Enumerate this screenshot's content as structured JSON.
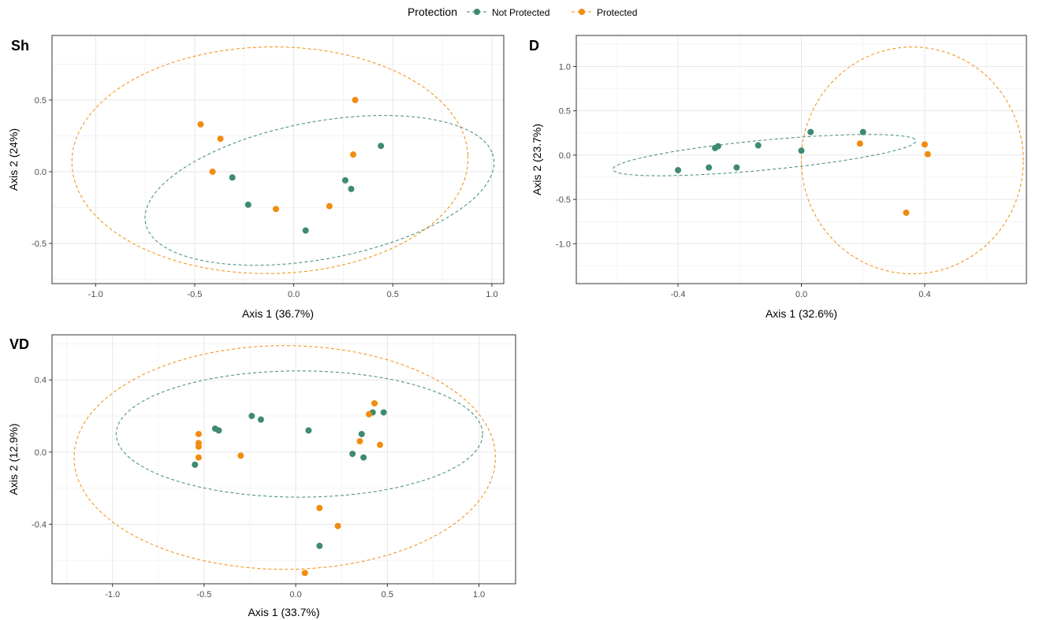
{
  "legend": {
    "title": "Protection",
    "items": [
      {
        "label": "Not Protected",
        "color": "#3e8a72"
      },
      {
        "label": "Protected",
        "color": "#f28c0f"
      }
    ],
    "placement": "top-center"
  },
  "chart_data": [
    {
      "type": "scatter",
      "title": "Sh",
      "xlabel": "Axis 1 (36.7%)",
      "ylabel": "Axis 2 (24%)",
      "xlim": [
        -1.22,
        1.06
      ],
      "ylim": [
        -0.78,
        0.95
      ],
      "xticks": [
        -1.0,
        -0.5,
        0.0,
        0.5,
        1.0
      ],
      "yticks": [
        -0.5,
        0.0,
        0.5
      ],
      "xtick_labels": [
        "-1.0",
        "-0.5",
        "0.0",
        "0.5",
        "1.0"
      ],
      "ytick_labels": [
        "-0.5",
        "0.0",
        "0.5"
      ],
      "grid": true,
      "series": [
        {
          "name": "Not Protected",
          "color": "#3e8a72",
          "points": [
            [
              -0.31,
              -0.04
            ],
            [
              -0.23,
              -0.23
            ],
            [
              0.06,
              -0.41
            ],
            [
              0.26,
              -0.06
            ],
            [
              0.29,
              -0.12
            ],
            [
              0.44,
              0.18
            ]
          ],
          "ellipse": {
            "cx": 0.13,
            "cy": -0.13,
            "rx": 0.91,
            "ry": 0.47,
            "angle": 17
          }
        },
        {
          "name": "Protected",
          "color": "#f28c0f",
          "points": [
            [
              -0.47,
              0.33
            ],
            [
              -0.37,
              0.23
            ],
            [
              -0.41,
              0.0
            ],
            [
              -0.09,
              -0.26
            ],
            [
              0.18,
              -0.24
            ],
            [
              0.3,
              0.12
            ],
            [
              0.31,
              0.5
            ]
          ],
          "ellipse": {
            "cx": -0.12,
            "cy": 0.08,
            "rx": 1.0,
            "ry": 0.79,
            "angle": 2
          }
        }
      ]
    },
    {
      "type": "scatter",
      "title": "D",
      "xlabel": "Axis 1 (32.6%)",
      "ylabel": "Axis 2 (23.7%)",
      "xlim": [
        -0.73,
        0.73
      ],
      "ylim": [
        -1.45,
        1.35
      ],
      "xticks": [
        -0.4,
        0.0,
        0.4
      ],
      "yticks": [
        -1.0,
        -0.5,
        0.0,
        0.5,
        1.0
      ],
      "xtick_labels": [
        "-0.4",
        "0.0",
        "0.4"
      ],
      "ytick_labels": [
        "-1.0",
        "-0.5",
        "0.0",
        "0.5",
        "1.0"
      ],
      "grid": true,
      "series": [
        {
          "name": "Not Protected",
          "color": "#3e8a72",
          "points": [
            [
              -0.4,
              -0.17
            ],
            [
              -0.3,
              -0.14
            ],
            [
              -0.28,
              0.08
            ],
            [
              -0.27,
              0.1
            ],
            [
              -0.21,
              -0.14
            ],
            [
              -0.14,
              0.11
            ],
            [
              0.0,
              0.05
            ],
            [
              0.03,
              0.26
            ],
            [
              0.2,
              0.26
            ]
          ],
          "ellipse": {
            "cx": -0.12,
            "cy": 0.0,
            "rx": 0.52,
            "ry": 0.16,
            "angle": 20
          }
        },
        {
          "name": "Protected",
          "color": "#f28c0f",
          "points": [
            [
              0.19,
              0.13
            ],
            [
              0.34,
              -0.65
            ],
            [
              0.4,
              0.12
            ],
            [
              0.41,
              0.01
            ]
          ],
          "ellipse": {
            "cx": 0.36,
            "cy": -0.06,
            "rx": 0.36,
            "ry": 1.28,
            "angle": 0
          }
        }
      ]
    },
    {
      "type": "scatter",
      "title": "VD",
      "xlabel": "Axis 1 (33.7%)",
      "ylabel": "Axis 2 (12.9%)",
      "xlim": [
        -1.33,
        1.2
      ],
      "ylim": [
        -0.73,
        0.65
      ],
      "xticks": [
        -1.0,
        -0.5,
        0.0,
        0.5,
        1.0
      ],
      "yticks": [
        -0.4,
        0.0,
        0.4
      ],
      "xtick_labels": [
        "-1.0",
        "-0.5",
        "0.0",
        "0.5",
        "1.0"
      ],
      "ytick_labels": [
        "-0.4",
        "0.0",
        "0.4"
      ],
      "grid": true,
      "series": [
        {
          "name": "Not Protected",
          "color": "#3e8a72",
          "points": [
            [
              -0.55,
              -0.07
            ],
            [
              -0.44,
              0.13
            ],
            [
              -0.42,
              0.12
            ],
            [
              -0.24,
              0.2
            ],
            [
              -0.19,
              0.18
            ],
            [
              0.07,
              0.12
            ],
            [
              0.13,
              -0.52
            ],
            [
              0.31,
              -0.01
            ],
            [
              0.36,
              0.1
            ],
            [
              0.37,
              -0.03
            ],
            [
              0.42,
              0.22
            ],
            [
              0.48,
              0.22
            ]
          ],
          "ellipse": {
            "cx": 0.02,
            "cy": 0.1,
            "rx": 1.0,
            "ry": 0.35,
            "angle": 0
          }
        },
        {
          "name": "Protected",
          "color": "#f28c0f",
          "points": [
            [
              -0.53,
              0.1
            ],
            [
              -0.53,
              0.05
            ],
            [
              -0.53,
              0.03
            ],
            [
              -0.53,
              -0.03
            ],
            [
              -0.3,
              -0.02
            ],
            [
              0.05,
              -0.67
            ],
            [
              0.13,
              -0.31
            ],
            [
              0.23,
              -0.41
            ],
            [
              0.35,
              0.06
            ],
            [
              0.4,
              0.21
            ],
            [
              0.43,
              0.27
            ],
            [
              0.46,
              0.04
            ]
          ],
          "ellipse": {
            "cx": -0.06,
            "cy": -0.03,
            "rx": 1.15,
            "ry": 0.62,
            "angle": 0
          }
        }
      ]
    }
  ]
}
